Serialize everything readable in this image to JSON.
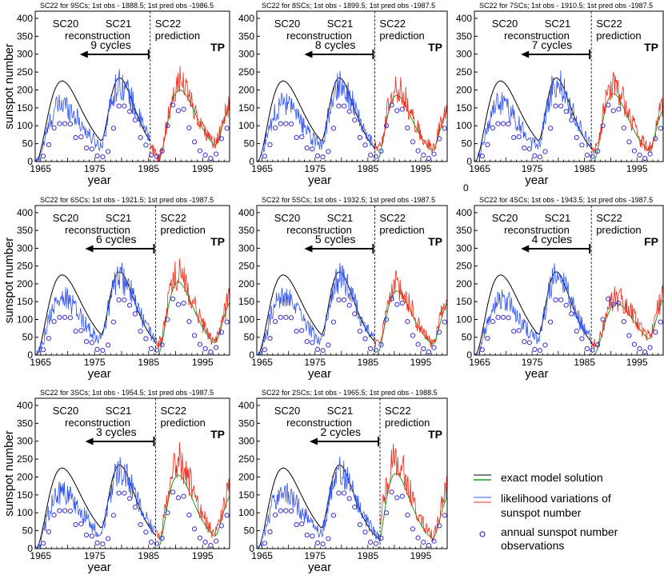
{
  "figure": {
    "ylabel": "sunspot number",
    "xlabel": "year",
    "stray_tick": "0",
    "legend": {
      "exact": "exact model solution",
      "likelihood": [
        "likelihood variations of",
        "sunspot number"
      ],
      "observations": [
        "annual sunspot number",
        "observations"
      ],
      "colors": {
        "exact_black": "#000000",
        "exact_green": "#1aa01a",
        "blue": "#3355ee",
        "red": "#ee2a1a",
        "obs": "#3b2fd0"
      }
    }
  },
  "chart_data": [
    {
      "type": "line",
      "title": "SC22 for 9SCs; 1st obs - 1888.5; 1st pred obs -1986.5",
      "cycles_label": "9 cycles",
      "verdict": "TP",
      "split_year": 1985.3,
      "labels": {
        "sc20": "SC20",
        "sc21": "SC21",
        "recon": "reconstruction",
        "sc22": "SC22",
        "pred": "prediction"
      },
      "xlim": [
        1964,
        2000
      ],
      "ylim": [
        0,
        420
      ],
      "xticks": [
        1965,
        1975,
        1985,
        1995
      ],
      "yticks": [
        0,
        50,
        100,
        150,
        200,
        250,
        300,
        350,
        400
      ],
      "pred_peak": 200,
      "pred_peak_year": 1990.8,
      "red_level": 1.1
    },
    {
      "type": "line",
      "title": "SC22 for 8SCs; 1st obs - 1899.5; 1st pred obs -1987.5",
      "cycles_label": "8 cycles",
      "verdict": "TP",
      "split_year": 1986.3,
      "labels": {
        "sc20": "SC20",
        "sc21": "SC21",
        "recon": "reconstruction",
        "sc22": "SC22",
        "pred": "prediction"
      },
      "xlim": [
        1964,
        2000
      ],
      "ylim": [
        0,
        420
      ],
      "xticks": [
        1965,
        1975,
        1985,
        1995
      ],
      "yticks": [
        0,
        50,
        100,
        150,
        200,
        250,
        300,
        350,
        400
      ],
      "pred_peak": 185,
      "pred_peak_year": 1990.5,
      "red_level": 1.1
    },
    {
      "type": "line",
      "title": "SC22 for 7SCs; 1st obs - 1910.5; 1st pred obs -1987.5",
      "cycles_label": "7 cycles",
      "verdict": "TP",
      "split_year": 1986.3,
      "labels": {
        "sc20": "SC20",
        "sc21": "SC21",
        "recon": "reconstruction",
        "sc22": "SC22",
        "pred": "prediction"
      },
      "xlim": [
        1964,
        2000
      ],
      "ylim": [
        0,
        420
      ],
      "xticks": [
        1965,
        1975,
        1985,
        1995
      ],
      "yticks": [
        0,
        50,
        100,
        150,
        200,
        250,
        300,
        350,
        400
      ],
      "pred_peak": 190,
      "pred_peak_year": 1990.5,
      "red_level": 1.1
    },
    {
      "type": "line",
      "title": "SC22 for 6SCs; 1st obs - 1921.5; 1st pred obs -1987.5",
      "cycles_label": "6 cycles",
      "verdict": "TP",
      "split_year": 1986.3,
      "labels": {
        "sc20": "SC20",
        "sc21": "SC21",
        "recon": "reconstruction",
        "sc22": "SC22",
        "pred": "prediction"
      },
      "xlim": [
        1964,
        2000
      ],
      "ylim": [
        0,
        420
      ],
      "xticks": [
        1965,
        1975,
        1985,
        1995
      ],
      "yticks": [
        0,
        50,
        100,
        150,
        200,
        250,
        300,
        350,
        400
      ],
      "pred_peak": 205,
      "pred_peak_year": 1990.5,
      "red_level": 1.1
    },
    {
      "type": "line",
      "title": "SC22 for 5SCs; 1st obs - 1932.5; 1st pred obs -1987.5",
      "cycles_label": "5 cycles",
      "verdict": "TP",
      "split_year": 1986.3,
      "labels": {
        "sc20": "SC20",
        "sc21": "SC21",
        "recon": "reconstruction",
        "sc22": "SC22",
        "pred": "prediction"
      },
      "xlim": [
        1964,
        2000
      ],
      "ylim": [
        0,
        420
      ],
      "xticks": [
        1965,
        1975,
        1985,
        1995
      ],
      "yticks": [
        0,
        50,
        100,
        150,
        200,
        250,
        300,
        350,
        400
      ],
      "pred_peak": 180,
      "pred_peak_year": 1990.5,
      "red_level": 1.1
    },
    {
      "type": "line",
      "title": "SC22 for 4SCs; 1st obs - 1943.5; 1st pred obs -1987.5",
      "cycles_label": "4 cycles",
      "verdict": "FP",
      "split_year": 1986.3,
      "labels": {
        "sc20": "SC20",
        "sc21": "SC21",
        "recon": "reconstruction",
        "sc22": "SC22",
        "pred": "prediction"
      },
      "xlim": [
        1964,
        2000
      ],
      "ylim": [
        0,
        420
      ],
      "xticks": [
        1965,
        1975,
        1985,
        1995
      ],
      "yticks": [
        0,
        50,
        100,
        150,
        200,
        250,
        300,
        350,
        400
      ],
      "pred_peak": 145,
      "pred_peak_year": 1991.2,
      "red_level": 1.1
    },
    {
      "type": "line",
      "title": "SC22 for 3SCs; 1st obs - 1954.5; 1st pred obs -1987.5",
      "cycles_label": "3 cycles",
      "verdict": "TP",
      "split_year": 1986.3,
      "labels": {
        "sc20": "SC20",
        "sc21": "SC21",
        "recon": "reconstruction",
        "sc22": "SC22",
        "pred": "prediction"
      },
      "xlim": [
        1964,
        2000
      ],
      "ylim": [
        0,
        420
      ],
      "xticks": [
        1965,
        1975,
        1985,
        1995
      ],
      "yticks": [
        0,
        50,
        100,
        150,
        200,
        250,
        300,
        350,
        400
      ],
      "pred_peak": 205,
      "pred_peak_year": 1990.5,
      "red_level": 1.2
    },
    {
      "type": "line",
      "title": "SC22 for 2SCs; 1st obs - 1965.5; 1st pred obs - 1988.5",
      "cycles_label": "2 cycles",
      "verdict": "TP",
      "split_year": 1987.3,
      "labels": {
        "sc20": "SC20",
        "sc21": "SC21",
        "recon": "reconstruction",
        "sc22": "SC22",
        "pred": "prediction"
      },
      "xlim": [
        1964,
        2000
      ],
      "ylim": [
        0,
        420
      ],
      "xticks": [
        1965,
        1975,
        1985,
        1995
      ],
      "yticks": [
        0,
        50,
        100,
        150,
        200,
        250,
        300,
        350,
        400
      ],
      "pred_peak": 210,
      "pred_peak_year": 1990.3,
      "red_level": 1.2
    }
  ],
  "observations": {
    "years": [
      1965.5,
      1966.5,
      1967.5,
      1968.5,
      1969.5,
      1970.5,
      1971.5,
      1972.5,
      1973.5,
      1974.5,
      1975.5,
      1976.5,
      1977.5,
      1978.5,
      1979.5,
      1980.5,
      1981.5,
      1982.5,
      1983.5,
      1984.5,
      1985.5,
      1986.5,
      1987.5,
      1988.5,
      1989.5,
      1990.5,
      1991.5,
      1992.5,
      1993.5,
      1994.5,
      1995.5,
      1996.5,
      1997.5,
      1998.5,
      1999.5
    ],
    "values": [
      15,
      47,
      94,
      106,
      106,
      105,
      67,
      69,
      38,
      35,
      16,
      13,
      28,
      93,
      155,
      155,
      140,
      116,
      67,
      46,
      18,
      14,
      29,
      100,
      158,
      142,
      146,
      94,
      55,
      30,
      18,
      9,
      21,
      64,
      93
    ]
  },
  "reference_curve": {
    "sc20_peak": 225,
    "sc20_peak_year": 1969.0,
    "sc21_peak": 215,
    "sc21_peak_year": 1979.8
  }
}
